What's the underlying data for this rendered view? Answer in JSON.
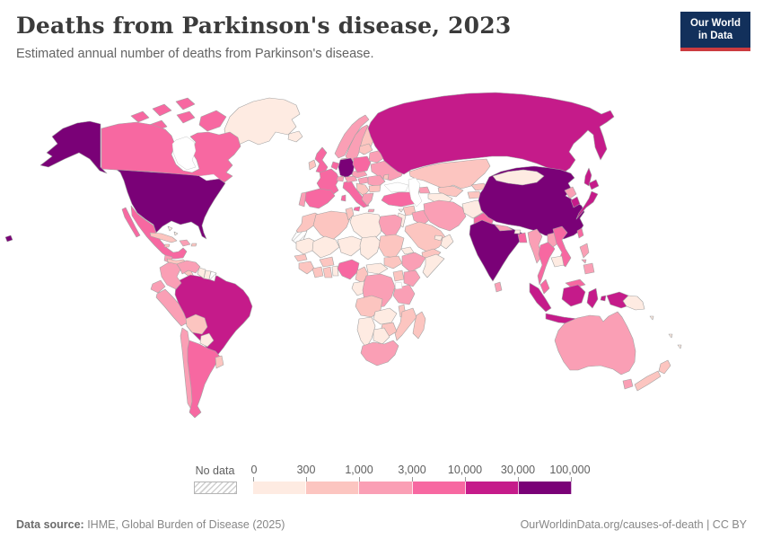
{
  "header": {
    "title": "Deaths from Parkinson's disease, 2023",
    "subtitle": "Estimated annual number of deaths from Parkinson's disease."
  },
  "logo": {
    "line1": "Our World",
    "line2": "in Data",
    "bg_color": "#12305b",
    "accent_color": "#cc3b3f"
  },
  "legend": {
    "no_data_label": "No data",
    "tick_labels": [
      "0",
      "300",
      "1,000",
      "3,000",
      "10,000",
      "30,000",
      "100,000"
    ]
  },
  "footer": {
    "source_label": "Data source:",
    "source_rest": " IHME, Global Burden of Disease (2025)",
    "right_text": "OurWorldinData.org/causes-of-death | CC BY"
  },
  "chart_data": {
    "type": "choropleth-world-map",
    "title": "Deaths from Parkinson's disease, 2023",
    "metric": "Estimated annual number of deaths from Parkinson's disease",
    "year": 2023,
    "legend_scale": [
      0,
      300,
      1000,
      3000,
      10000,
      30000,
      100000
    ],
    "bins": [
      {
        "range": "0-300",
        "color": "#feebe2",
        "countries": [
          "Greenland",
          "Bahamas",
          "Nicaragua-Costa Rica-Panama",
          "Guyana",
          "Suriname",
          "Paraguay",
          "Iceland",
          "Libya",
          "Mauritania",
          "Mali",
          "Niger",
          "Chad",
          "Eritrea",
          "Togo-Benin",
          "Central African Republic",
          "Gabon-Congo",
          "Somalia",
          "Zambia",
          "Namibia",
          "Botswana",
          "Lebanon-Israel-Jordan",
          "Oman",
          "UAE-Qatar",
          "Cyprus",
          "Turkmenistan",
          "Afghanistan",
          "Mongolia",
          "Bhutan",
          "Cambodia",
          "Papua New Guinea",
          "Pacific islands"
        ]
      },
      {
        "range": "300-1,000",
        "color": "#fcc5c0",
        "countries": [
          "Cuba",
          "Jamaica",
          "Puerto Rico",
          "Central America",
          "Bolivia",
          "Uruguay",
          "Ireland",
          "Finland",
          "Denmark-area",
          "Baltic states",
          "Balkans",
          "Bulgaria",
          "Moldova",
          "Morocco",
          "Algeria",
          "Tunisia",
          "Sudan",
          "South Sudan",
          "Senegal",
          "Guinea region",
          "Ivory Coast",
          "Ghana",
          "Burkina Faso",
          "Cameroon",
          "Uganda",
          "Angola",
          "Zimbabwe",
          "Mozambique",
          "Malawi",
          "Madagascar",
          "Saudi Arabia",
          "Syria",
          "Yemen",
          "Georgia",
          "Armenia",
          "Kazakhstan",
          "Uzbekistan",
          "Kyrgyzstan",
          "Tajikistan",
          "New Zealand"
        ]
      },
      {
        "range": "1,000-3,000",
        "color": "#fa9fb5",
        "countries": [
          "Colombia",
          "Venezuela",
          "Ecuador",
          "Peru",
          "Chile",
          "Hispaniola",
          "Guatemala",
          "Norway",
          "Sweden",
          "Denmark",
          "Portugal",
          "Switzerland",
          "Austria",
          "Czechia-Slovakia",
          "Hungary",
          "Romania",
          "Greece",
          "Belarus",
          "Ukraine",
          "Azerbaijan",
          "Iraq",
          "Iran",
          "Egypt",
          "Ethiopia",
          "Kenya",
          "Tanzania",
          "DR Congo",
          "South Africa",
          "Nepal",
          "Sri Lanka",
          "Myanmar",
          "Laos",
          "Philippines",
          "North Korea",
          "Australia",
          "Tasmania"
        ]
      },
      {
        "range": "3,000-10,000",
        "color": "#f768a1",
        "countries": [
          "Canada",
          "Canadian Arctic",
          "Mexico",
          "Argentina",
          "United Kingdom",
          "France",
          "Spain",
          "Italy",
          "Poland",
          "Benelux",
          "Turkey",
          "Pakistan",
          "Nigeria",
          "Bangladesh",
          "Thailand",
          "Vietnam",
          "Malaysia",
          "Taiwan"
        ]
      },
      {
        "range": "10,000-30,000",
        "color": "#c51b8a",
        "countries": [
          "Russia",
          "Brazil",
          "Japan",
          "South Korea",
          "Indonesia"
        ]
      },
      {
        "range": "30,000-100,000",
        "color": "#7a0177",
        "countries": [
          "United States",
          "Alaska",
          "Hawaii",
          "China",
          "India",
          "Germany"
        ]
      }
    ],
    "no_data_countries": [
      "Western Sahara",
      "French Guiana"
    ]
  }
}
